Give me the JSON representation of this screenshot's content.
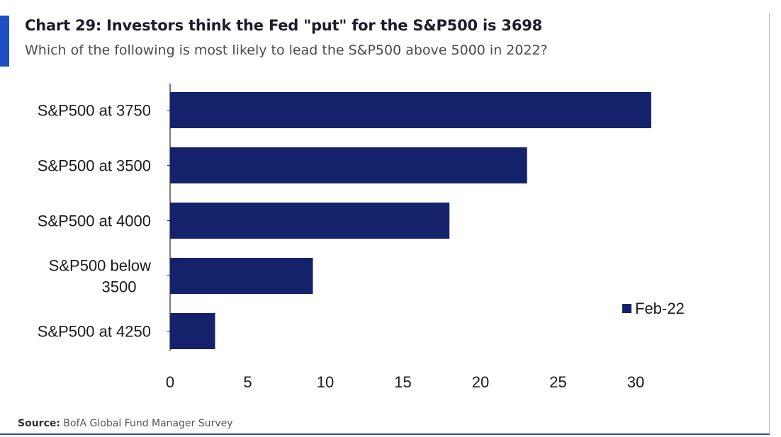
{
  "header": {
    "title": "Chart 29: Investors think the Fed \"put\" for the S&P500 is 3698",
    "subtitle": "Which of the following is most likely to lead the S&P500 above 5000 in 2022?"
  },
  "footer": {
    "source_label": "Source:",
    "source_text": "BofA Global Fund Manager Survey"
  },
  "colors": {
    "bar": "#14226b",
    "accent": "#1f4fc4",
    "axis": "#222222"
  },
  "chart_data": {
    "type": "bar",
    "orientation": "horizontal",
    "categories": [
      [
        "S&P500 at 3750"
      ],
      [
        "S&P500 at 3500"
      ],
      [
        "S&P500 at 4000"
      ],
      [
        "S&P500 below",
        "3500"
      ],
      [
        "S&P500 at 4250"
      ]
    ],
    "series": [
      {
        "name": "Feb-22",
        "values": [
          31,
          23,
          18,
          9.2,
          2.9
        ]
      }
    ],
    "xlim": [
      0,
      31
    ],
    "xticks": [
      "0",
      "5",
      "10",
      "15",
      "20",
      "25",
      "30"
    ],
    "grid": false,
    "legend_position": "right"
  }
}
